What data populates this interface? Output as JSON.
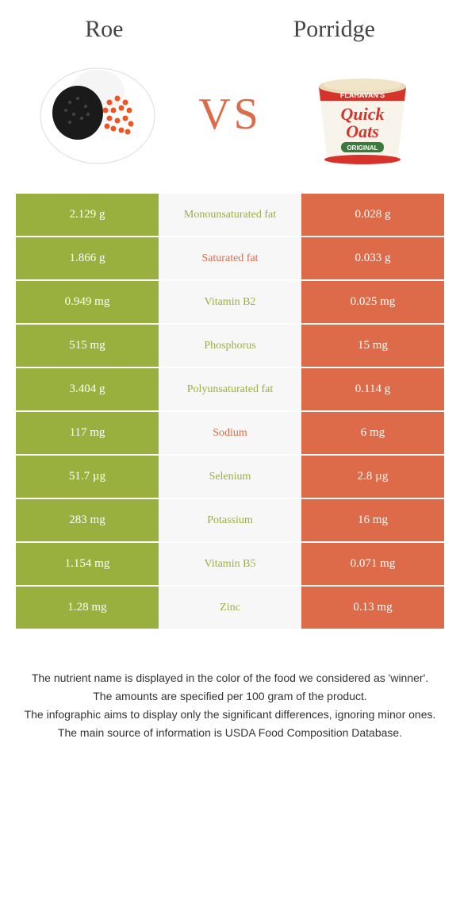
{
  "colors": {
    "roe": "#99b03f",
    "porridge": "#dd6b4a",
    "mid_bg": "#f7f7f7",
    "text_dark": "#444444",
    "footer_text": "#333333"
  },
  "header": {
    "left_title": "Roe",
    "right_title": "Porridge",
    "vs": "VS"
  },
  "images": {
    "left_alt": "roe-caviar-bowl",
    "right_alt": "porridge-quick-oats-cup",
    "porridge_brand": "FLAHAVAN'S",
    "porridge_product_1": "Quick",
    "porridge_product_2": "Oats",
    "porridge_variant": "ORIGINAL"
  },
  "rows": [
    {
      "left": "2.129 g",
      "mid": "Monounsaturated fat",
      "right": "0.028 g",
      "winner": "roe"
    },
    {
      "left": "1.866 g",
      "mid": "Saturated fat",
      "right": "0.033 g",
      "winner": "porridge"
    },
    {
      "left": "0.949 mg",
      "mid": "Vitamin B2",
      "right": "0.025 mg",
      "winner": "roe"
    },
    {
      "left": "515 mg",
      "mid": "Phosphorus",
      "right": "15 mg",
      "winner": "roe"
    },
    {
      "left": "3.404 g",
      "mid": "Polyunsaturated fat",
      "right": "0.114 g",
      "winner": "roe"
    },
    {
      "left": "117 mg",
      "mid": "Sodium",
      "right": "6 mg",
      "winner": "porridge"
    },
    {
      "left": "51.7 µg",
      "mid": "Selenium",
      "right": "2.8 µg",
      "winner": "roe"
    },
    {
      "left": "283 mg",
      "mid": "Potassium",
      "right": "16 mg",
      "winner": "roe"
    },
    {
      "left": "1.154 mg",
      "mid": "Vitamin B5",
      "right": "0.071 mg",
      "winner": "roe"
    },
    {
      "left": "1.28 mg",
      "mid": "Zinc",
      "right": "0.13 mg",
      "winner": "roe"
    }
  ],
  "footer": [
    "The nutrient name is displayed in the color of the food we considered as 'winner'.",
    "The amounts are specified per 100 gram of the product.",
    "The infographic aims to display only the significant differences, ignoring minor ones.",
    "The main source of information is USDA Food Composition Database."
  ]
}
